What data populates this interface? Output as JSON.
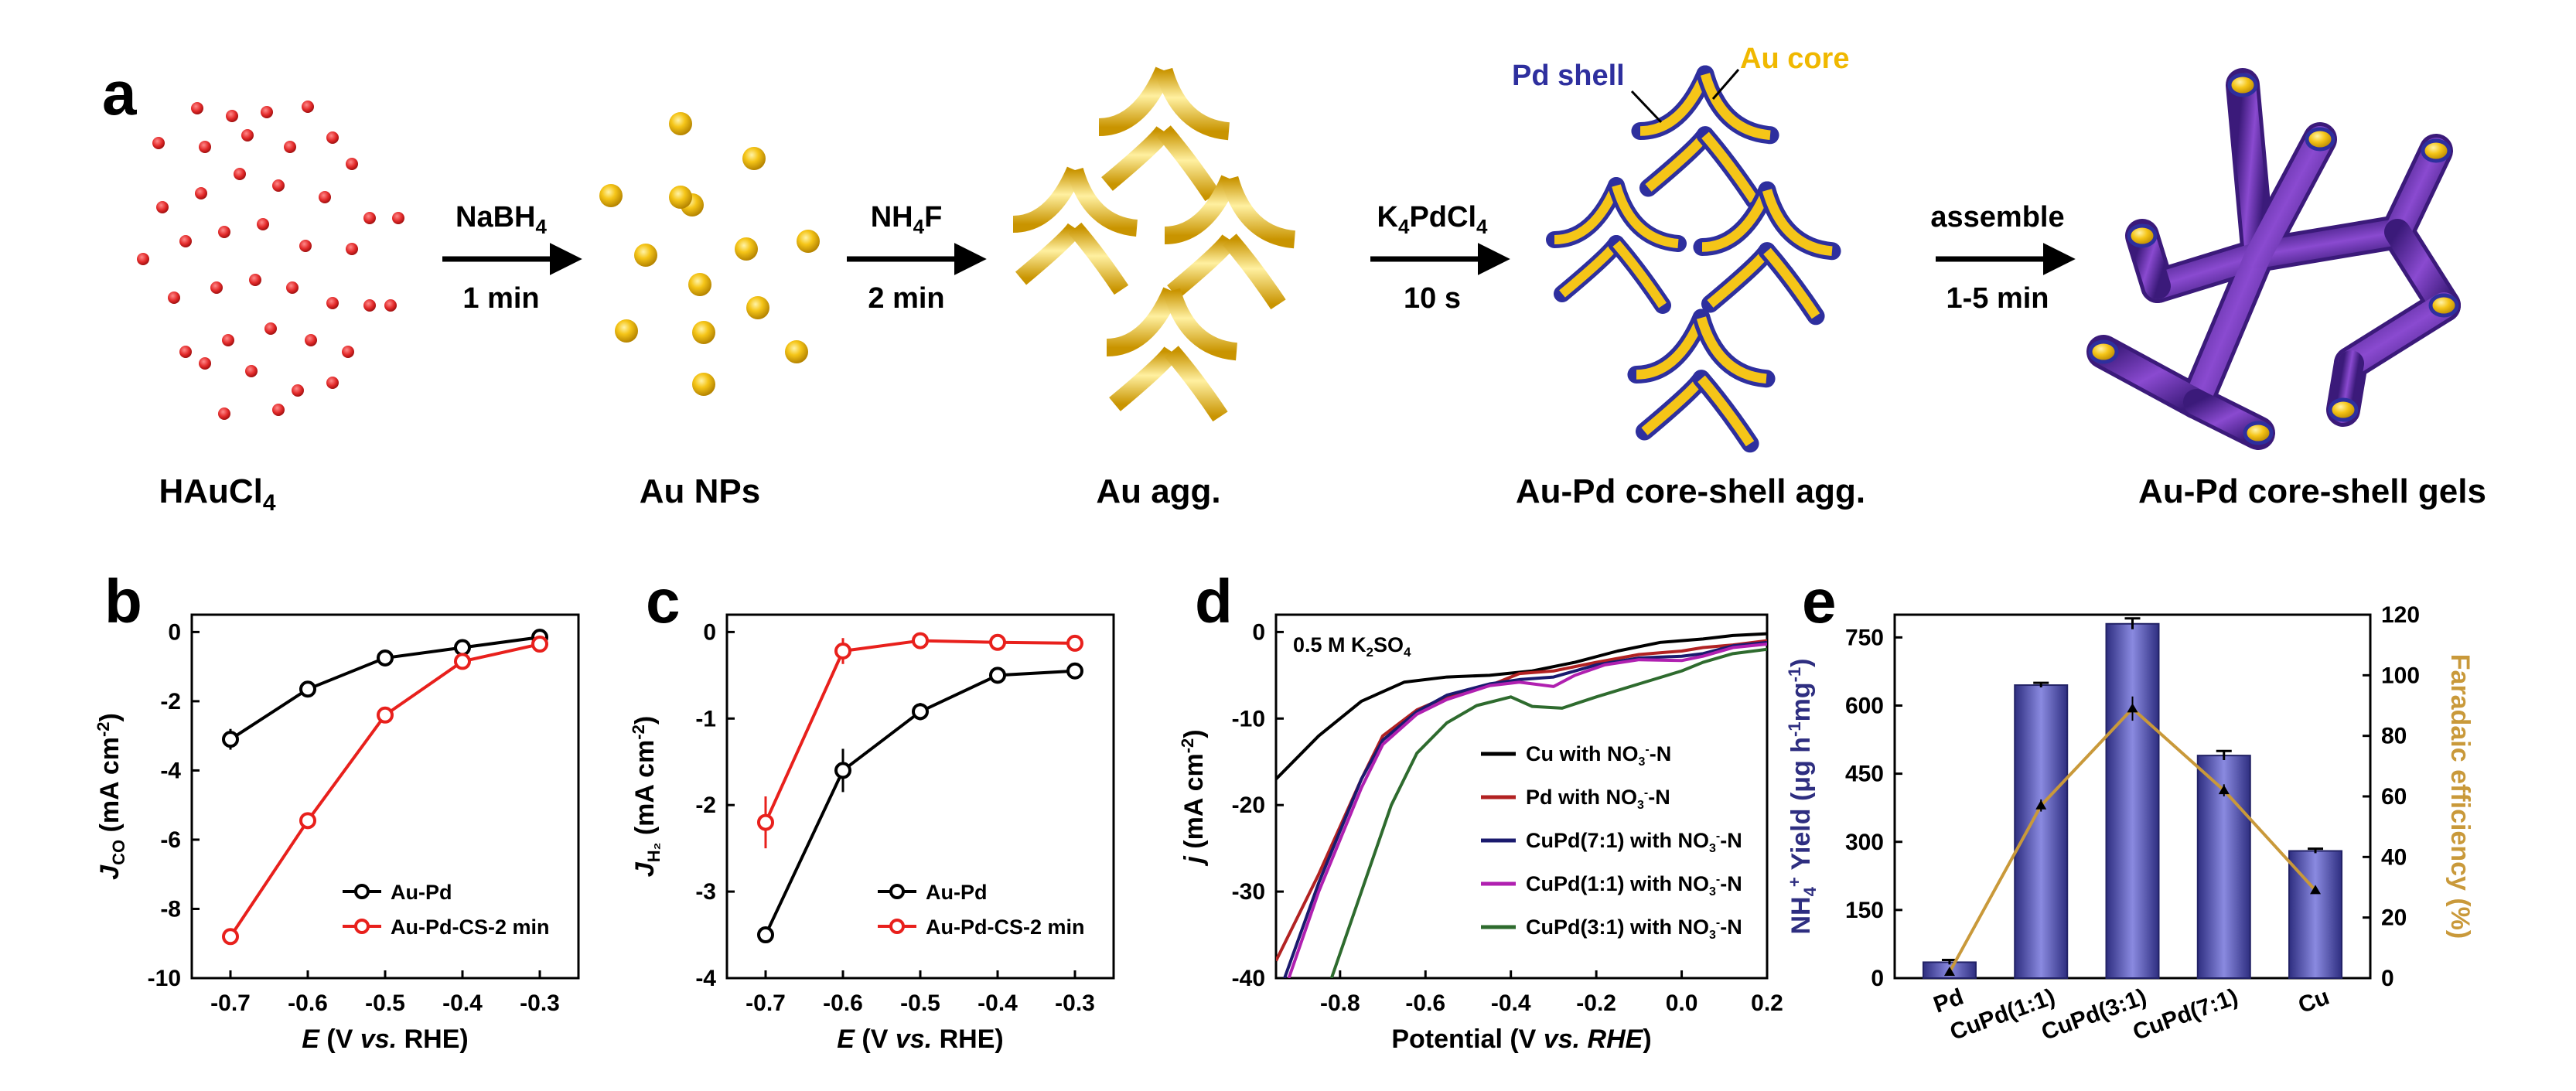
{
  "figure": {
    "panel_labels": [
      "a",
      "b",
      "c",
      "d",
      "e"
    ]
  },
  "schematic": {
    "stages": [
      "HAuCl4",
      "Au NPs",
      "Au agg.",
      "Au-Pd core-shell agg.",
      "Au-Pd core-shell gels"
    ],
    "arrows": [
      {
        "reagent": "NaBH4",
        "time": "1 min"
      },
      {
        "reagent": "NH4F",
        "time": "2 min"
      },
      {
        "reagent": "K4PdCl4",
        "time": "10 s"
      },
      {
        "reagent": "assemble",
        "time": "1-5 min"
      }
    ],
    "annotations": {
      "shell": "Pd shell",
      "core": "Au core"
    },
    "colors": {
      "precursor": "#e32a2a",
      "gold": "#f5c518",
      "gold_dark": "#c99400",
      "pd_shell": "#2e2f9e",
      "gel": "#6a2aa6"
    }
  },
  "chart_data": [
    {
      "id": "b",
      "type": "line",
      "xlabel": "E (V vs. RHE)",
      "ylabel": "JCO (mA cm-2)",
      "x_ticks": [
        "-0.7",
        "-0.6",
        "-0.5",
        "-0.4",
        "-0.3"
      ],
      "y_ticks": [
        "0",
        "-2",
        "-4",
        "-6",
        "-8",
        "-10"
      ],
      "xlim": [
        -0.75,
        -0.25
      ],
      "ylim": [
        -10,
        0.5
      ],
      "x": [
        -0.7,
        -0.6,
        -0.5,
        -0.4,
        -0.3
      ],
      "series": [
        {
          "name": "Au-Pd",
          "color": "#000000",
          "values": [
            -3.1,
            -1.65,
            -0.75,
            -0.45,
            -0.15
          ],
          "errors": [
            0.3,
            0.12,
            0.08,
            0.08,
            0.05
          ]
        },
        {
          "name": "Au-Pd-CS-2 min",
          "color": "#e8201c",
          "values": [
            -8.8,
            -5.45,
            -2.4,
            -0.85,
            -0.35
          ],
          "errors": [
            0.05,
            0.05,
            0.05,
            0.05,
            0.05
          ]
        }
      ],
      "legend": "bottom-right"
    },
    {
      "id": "c",
      "type": "line",
      "xlabel": "E (V vs. RHE)",
      "ylabel": "JH2 (mA cm-2)",
      "x_ticks": [
        "-0.7",
        "-0.6",
        "-0.5",
        "-0.4",
        "-0.3"
      ],
      "y_ticks": [
        "0",
        "-1",
        "-2",
        "-3",
        "-4"
      ],
      "xlim": [
        -0.75,
        -0.25
      ],
      "ylim": [
        -4,
        0.2
      ],
      "x": [
        -0.7,
        -0.6,
        -0.5,
        -0.4,
        -0.3
      ],
      "series": [
        {
          "name": "Au-Pd",
          "color": "#000000",
          "values": [
            -3.5,
            -1.6,
            -0.92,
            -0.5,
            -0.45
          ],
          "errors": [
            0.03,
            0.25,
            0.1,
            0.05,
            0.03
          ]
        },
        {
          "name": "Au-Pd-CS-2 min",
          "color": "#e8201c",
          "values": [
            -2.2,
            -0.22,
            -0.1,
            -0.12,
            -0.13
          ],
          "errors": [
            0.3,
            0.15,
            0.03,
            0.03,
            0.03
          ]
        }
      ],
      "legend": "bottom-right"
    },
    {
      "id": "d",
      "type": "line",
      "xlabel": "Potential (V vs. RHE)",
      "ylabel": "j (mA cm-2)",
      "x_ticks": [
        "-0.8",
        "-0.6",
        "-0.4",
        "-0.2",
        "0.0",
        "0.2"
      ],
      "y_ticks": [
        "0",
        "-10",
        "-20",
        "-30",
        "-40"
      ],
      "xlim": [
        -0.95,
        0.2
      ],
      "ylim": [
        -40,
        2
      ],
      "annotation": "0.5 M K2SO4",
      "series": [
        {
          "name": "Cu with NO3--N",
          "color": "#000000",
          "points": [
            [
              -0.95,
              -17
            ],
            [
              -0.85,
              -12
            ],
            [
              -0.75,
              -8
            ],
            [
              -0.65,
              -5.8
            ],
            [
              -0.55,
              -5.2
            ],
            [
              -0.45,
              -5
            ],
            [
              -0.35,
              -4.5
            ],
            [
              -0.25,
              -3.5
            ],
            [
              -0.15,
              -2.2
            ],
            [
              -0.05,
              -1.2
            ],
            [
              0.05,
              -0.8
            ],
            [
              0.12,
              -0.4
            ],
            [
              0.2,
              -0.2
            ]
          ]
        },
        {
          "name": "Pd with NO3--N",
          "color": "#b22222",
          "points": [
            [
              -0.95,
              -38
            ],
            [
              -0.85,
              -28
            ],
            [
              -0.75,
              -17
            ],
            [
              -0.7,
              -12
            ],
            [
              -0.62,
              -9
            ],
            [
              -0.55,
              -7.5
            ],
            [
              -0.45,
              -6.2
            ],
            [
              -0.38,
              -4.8
            ],
            [
              -0.3,
              -4.5
            ],
            [
              -0.2,
              -3.5
            ],
            [
              -0.1,
              -2.6
            ],
            [
              0.0,
              -2.2
            ],
            [
              0.05,
              -1.8
            ],
            [
              0.12,
              -1.5
            ],
            [
              0.2,
              -1
            ]
          ]
        },
        {
          "name": "CuPd(7:1) with NO3--N",
          "color": "#1a1a6e",
          "points": [
            [
              -0.93,
              -40
            ],
            [
              -0.85,
              -29
            ],
            [
              -0.75,
              -17
            ],
            [
              -0.7,
              -12.5
            ],
            [
              -0.62,
              -9.2
            ],
            [
              -0.55,
              -7.3
            ],
            [
              -0.45,
              -6
            ],
            [
              -0.38,
              -5.5
            ],
            [
              -0.3,
              -5.2
            ],
            [
              -0.2,
              -3.8
            ],
            [
              -0.1,
              -3
            ],
            [
              0.0,
              -2.8
            ],
            [
              0.05,
              -2.5
            ],
            [
              0.12,
              -1.6
            ],
            [
              0.2,
              -1.2
            ]
          ]
        },
        {
          "name": "CuPd(1:1) with NO3--N",
          "color": "#b020b0",
          "points": [
            [
              -0.92,
              -40
            ],
            [
              -0.85,
              -30
            ],
            [
              -0.75,
              -18
            ],
            [
              -0.7,
              -13
            ],
            [
              -0.62,
              -9.5
            ],
            [
              -0.55,
              -7.8
            ],
            [
              -0.45,
              -6.2
            ],
            [
              -0.38,
              -5.8
            ],
            [
              -0.3,
              -6.3
            ],
            [
              -0.25,
              -5
            ],
            [
              -0.18,
              -3.8
            ],
            [
              -0.1,
              -3.2
            ],
            [
              0.0,
              -3.3
            ],
            [
              0.05,
              -2.8
            ],
            [
              0.12,
              -1.8
            ],
            [
              0.2,
              -1.4
            ]
          ]
        },
        {
          "name": "CuPd(3:1) with NO3--N",
          "color": "#2e6b2e",
          "points": [
            [
              -0.82,
              -40
            ],
            [
              -0.75,
              -30
            ],
            [
              -0.68,
              -20
            ],
            [
              -0.62,
              -14
            ],
            [
              -0.55,
              -10.5
            ],
            [
              -0.48,
              -8.5
            ],
            [
              -0.4,
              -7.5
            ],
            [
              -0.35,
              -8.6
            ],
            [
              -0.28,
              -8.8
            ],
            [
              -0.2,
              -7.5
            ],
            [
              -0.1,
              -6
            ],
            [
              0.0,
              -4.5
            ],
            [
              0.05,
              -3.5
            ],
            [
              0.12,
              -2.5
            ],
            [
              0.2,
              -2
            ]
          ]
        }
      ],
      "legend": "center-right"
    },
    {
      "id": "e",
      "type": "bar",
      "categories": [
        "Pd",
        "CuPd(1:1)",
        "CuPd(3:1)",
        "CuPd(7:1)",
        "Cu"
      ],
      "values": [
        35,
        645,
        780,
        490,
        280
      ],
      "errors": [
        5,
        5,
        12,
        10,
        5
      ],
      "ylabel": "NH4+ Yield (μg h-1mg-1)",
      "y_ticks": [
        "0",
        "150",
        "300",
        "450",
        "600",
        "750"
      ],
      "ylim": [
        0,
        800
      ],
      "y2label": "Faradaic efficiency (%)",
      "y2_ticks": [
        "0",
        "20",
        "40",
        "60",
        "80",
        "100",
        "120"
      ],
      "y2lim": [
        0,
        120
      ],
      "fe_values": [
        2,
        57,
        89,
        62,
        29
      ],
      "fe_errors": [
        1,
        2,
        4,
        2,
        1
      ],
      "bar_color": "#4a4aa8",
      "fe_color": "#c9993a",
      "legend": "none"
    }
  ]
}
